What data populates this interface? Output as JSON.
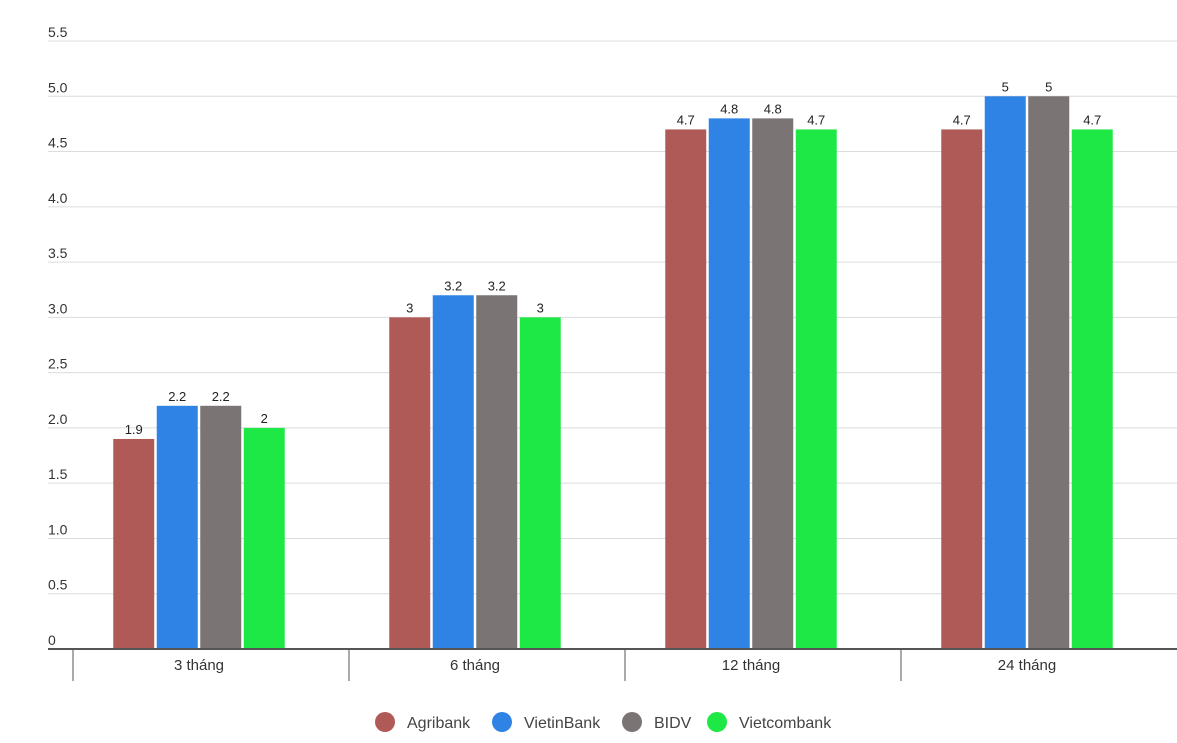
{
  "chart_data": {
    "type": "bar",
    "categories": [
      "3 tháng",
      "6 tháng",
      "12 tháng",
      "24 tháng"
    ],
    "series": [
      {
        "name": "Agribank",
        "color": "#b05a58",
        "values": [
          1.9,
          3,
          4.7,
          4.7
        ]
      },
      {
        "name": "VietinBank",
        "color": "#2f83e4",
        "values": [
          2.2,
          3.2,
          4.8,
          5
        ]
      },
      {
        "name": "BIDV",
        "color": "#7a7474",
        "values": [
          2.2,
          3.2,
          4.8,
          5
        ]
      },
      {
        "name": "Vietcombank",
        "color": "#1ee846",
        "values": [
          2,
          3,
          4.7,
          4.7
        ]
      }
    ],
    "value_labels": [
      [
        "1.9",
        "3",
        "4.7",
        "4.7"
      ],
      [
        "2.2",
        "3.2",
        "4.8",
        "5"
      ],
      [
        "2.2",
        "3.2",
        "4.8",
        "5"
      ],
      [
        "2",
        "3",
        "4.7",
        "4.7"
      ]
    ],
    "yticks": [
      "0",
      "0.5",
      "1.0",
      "1.5",
      "2.0",
      "2.5",
      "3.0",
      "3.5",
      "4.0",
      "4.5",
      "5.0",
      "5.5"
    ],
    "ylim": [
      0,
      5.5
    ],
    "grid": true,
    "legend_position": "bottom-center",
    "title": "",
    "xlabel": "",
    "ylabel": ""
  }
}
